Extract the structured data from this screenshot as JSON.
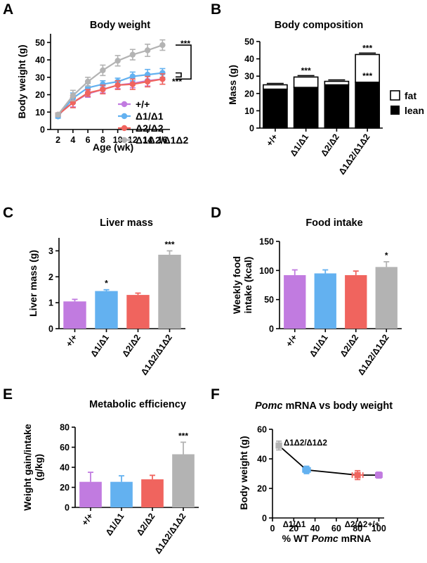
{
  "colors": {
    "wt": "#c17be0",
    "d1": "#63b1f0",
    "d2": "#f0645e",
    "d12": "#b3b3b3",
    "lean": "#000000",
    "fat": "#ffffff"
  },
  "chart_data": [
    {
      "panel": "A",
      "type": "line",
      "title": "Body weight",
      "xlabel": "Age (wk)",
      "ylabel": "Body weight (g)",
      "x": [
        2,
        4,
        6,
        8,
        10,
        12,
        14,
        16
      ],
      "xlim": [
        1,
        17
      ],
      "ylim": [
        0,
        55
      ],
      "xticks": [
        "2",
        "4",
        "6",
        "8",
        "10",
        "12",
        "14",
        "16"
      ],
      "yticks": [
        "0",
        "10",
        "20",
        "30",
        "40",
        "50"
      ],
      "series": [
        {
          "name": "+/+",
          "color": "#c17be0",
          "values": [
            8.5,
            15.5,
            20.5,
            23,
            25.5,
            26.5,
            28,
            29
          ],
          "err": [
            1,
            2.5,
            2,
            2,
            2,
            2.5,
            3,
            3
          ]
        },
        {
          "name": "Δ1/Δ1",
          "color": "#63b1f0",
          "values": [
            7.5,
            18,
            24,
            26,
            27.5,
            30.5,
            31.5,
            32.5
          ],
          "err": [
            1,
            3,
            2.5,
            2,
            2,
            2.5,
            3,
            2.5
          ]
        },
        {
          "name": "Δ2/Δ2",
          "color": "#f0645e",
          "values": [
            8.5,
            15.5,
            21,
            23,
            25.5,
            26,
            27.5,
            29
          ],
          "err": [
            1,
            3,
            2,
            2.5,
            2.5,
            3,
            3,
            3
          ]
        },
        {
          "name": "Δ1Δ2/Δ1Δ2",
          "color": "#b3b3b3",
          "values": [
            8.5,
            19.5,
            27.5,
            34,
            39.5,
            43,
            45.5,
            48.5
          ],
          "err": [
            1,
            3,
            2.5,
            3,
            3,
            3,
            3.5,
            3
          ]
        }
      ],
      "significance": [
        {
          "label": "***",
          "between": [
            48.5,
            29
          ]
        },
        {
          "label": "***",
          "between": [
            32.5,
            29
          ]
        }
      ]
    },
    {
      "panel": "B",
      "type": "bar",
      "stacked": true,
      "title": "Body composition",
      "ylabel": "Mass (g)",
      "ylim": [
        0,
        50
      ],
      "yticks": [
        "0",
        "10",
        "20",
        "30",
        "40",
        "50"
      ],
      "categories": [
        "+/+",
        "Δ1/Δ1",
        "Δ2/Δ2",
        "Δ1Δ2/Δ1Δ2"
      ],
      "series": [
        {
          "name": "lean",
          "values": [
            22.5,
            23.5,
            25,
            26.5
          ]
        },
        {
          "name": "fat",
          "values": [
            2.5,
            6,
            2,
            16
          ]
        }
      ],
      "annotations": [
        {
          "category": 1,
          "label": "***",
          "at": 29.5
        },
        {
          "category": 3,
          "label": "***",
          "at": 26.5
        },
        {
          "category": 3,
          "label": "***",
          "at": 42.5
        }
      ]
    },
    {
      "panel": "C",
      "type": "bar",
      "title": "Liver mass",
      "ylabel": "Liver mass (g)",
      "ylim": [
        0,
        3.5
      ],
      "yticks": [
        "0",
        "1",
        "2",
        "3"
      ],
      "categories": [
        "+/+",
        "Δ1/Δ1",
        "Δ2/Δ2",
        "Δ1Δ2/Δ1Δ2"
      ],
      "values": [
        1.05,
        1.45,
        1.3,
        2.85
      ],
      "err": [
        0.08,
        0.05,
        0.07,
        0.15
      ],
      "significance": [
        "",
        "*",
        "",
        "***"
      ]
    },
    {
      "panel": "D",
      "type": "bar",
      "title": "Food intake",
      "ylabel": "Weekly food intake (kcal)",
      "ylabel_lines": [
        "Weekly food",
        "intake (kcal)"
      ],
      "ylim": [
        0,
        150
      ],
      "yticks": [
        "0",
        "50",
        "100",
        "150"
      ],
      "categories": [
        "+/+",
        "Δ1/Δ1",
        "Δ2/Δ2",
        "Δ1Δ2/Δ1Δ2"
      ],
      "values": [
        92,
        95,
        92,
        106
      ],
      "err": [
        9,
        6,
        7,
        9
      ],
      "significance": [
        "",
        "",
        "",
        "*"
      ]
    },
    {
      "panel": "E",
      "type": "bar",
      "title": "Metabolic efficiency",
      "ylabel": "Weight gain/intake (g/kg)",
      "ylabel_lines": [
        "Weight gain/intake",
        "(g/kg)"
      ],
      "ylim": [
        0,
        80
      ],
      "yticks": [
        "0",
        "20",
        "40",
        "60",
        "80"
      ],
      "categories": [
        "+/+",
        "Δ1/Δ1",
        "Δ2/Δ2",
        "Δ1Δ2/Δ1Δ2"
      ],
      "values": [
        25.5,
        25.5,
        28,
        53
      ],
      "err": [
        9.5,
        6,
        4,
        12
      ],
      "significance": [
        "",
        "",
        "",
        "***"
      ]
    },
    {
      "panel": "F",
      "type": "scatter",
      "title_italic": "Pomc",
      "title_rest": " mRNA vs body weight",
      "xlabel_pre": "% WT ",
      "xlabel_italic": "Pomc",
      "xlabel_post": " mRNA",
      "ylabel": "Body weight (g)",
      "xlim": [
        0,
        105
      ],
      "ylim": [
        0,
        60
      ],
      "xticks": [
        "0",
        "20",
        "40",
        "60",
        "80",
        "100"
      ],
      "yticks": [
        "0",
        "20",
        "40",
        "60"
      ],
      "points": [
        {
          "label": "Δ1Δ2/Δ1Δ2",
          "x": 6,
          "y": 49,
          "xerr": 2.5,
          "yerr": 3,
          "color": "#b3b3b3"
        },
        {
          "label": "Δ1/Δ1",
          "x": 32,
          "y": 32.5,
          "xerr": 3.5,
          "yerr": 2.5,
          "color": "#63b1f0"
        },
        {
          "label": "Δ2/Δ2",
          "x": 80,
          "y": 29,
          "xerr": 5,
          "yerr": 3,
          "color": "#f0645e"
        },
        {
          "label": "+/+",
          "x": 100,
          "y": 29,
          "xerr": 3,
          "yerr": 2,
          "color": "#c17be0"
        }
      ]
    }
  ]
}
